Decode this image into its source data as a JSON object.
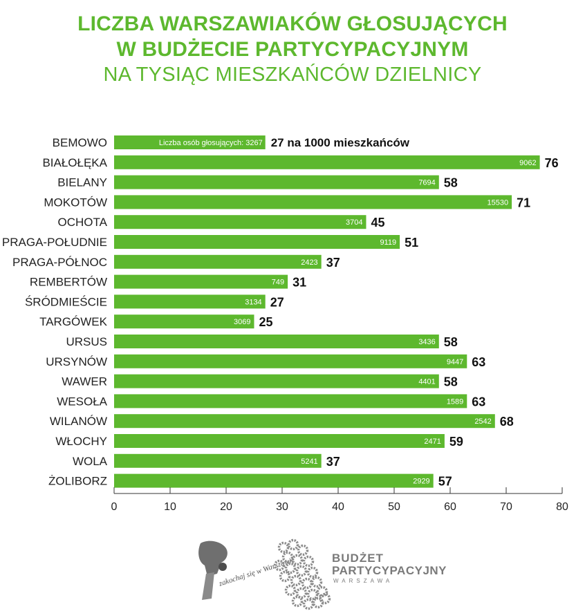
{
  "title": {
    "line1": "LICZBA WARSZAWIAKÓW GŁOSUJĄCYCH",
    "line2": "W BUDŻECIE PARTYCYPACYJNYM",
    "line3": "NA TYSIĄC MIESZKAŃCÓW DZIELNICY"
  },
  "chart_data": {
    "type": "bar",
    "orientation": "horizontal",
    "categories": [
      "BEMOWO",
      "BIAŁOŁĘKA",
      "BIELANY",
      "MOKOTÓW",
      "OCHOTA",
      "PRAGA-POŁUDNIE",
      "PRAGA-PÓŁNOC",
      "REMBERTÓW",
      "ŚRÓDMIEŚCIE",
      "TARGÓWEK",
      "URSUS",
      "URSYNÓW",
      "WAWER",
      "WESOŁA",
      "WILANÓW",
      "WŁOCHY",
      "WOLA",
      "ŻOLIBORZ"
    ],
    "values": [
      27,
      76,
      58,
      71,
      45,
      51,
      37,
      31,
      27,
      25,
      58,
      63,
      58,
      63,
      68,
      59,
      37,
      57
    ],
    "voters": [
      3267,
      9062,
      7694,
      15530,
      3704,
      9119,
      2423,
      749,
      3134,
      3069,
      3436,
      9447,
      4401,
      1589,
      2542,
      2471,
      5241,
      2929
    ],
    "first_bar_inner_label": "Liczba osób głosujących: 3267",
    "first_bar_value_label": "27 na 1000 mieszkańców",
    "xlim": [
      0,
      80
    ],
    "xticks": [
      0,
      10,
      20,
      30,
      40,
      50,
      60,
      70,
      80
    ],
    "grid": false,
    "bar_color": "#5db82e"
  },
  "footer": {
    "logo1_text": "zakochaj się w Warszawie",
    "logo2_line1": "BUDŻET",
    "logo2_line2": "PARTYCYPACYJNY",
    "logo2_line3": "WARSZAWA"
  }
}
